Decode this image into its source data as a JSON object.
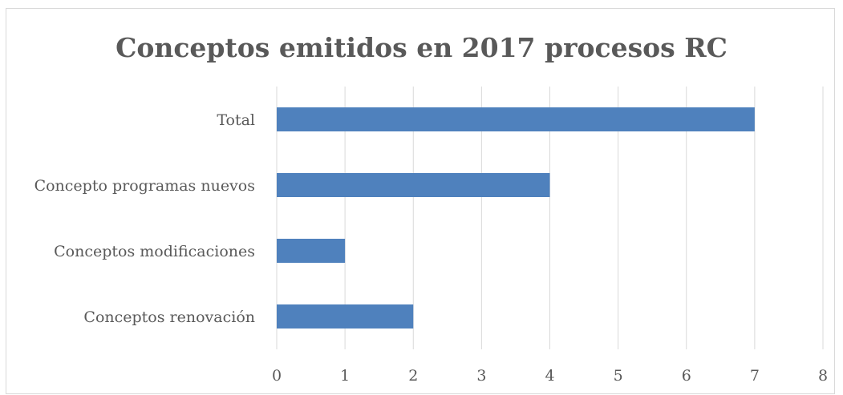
{
  "chart_data": {
    "type": "bar",
    "orientation": "horizontal",
    "title": "Conceptos emitidos en 2017 procesos RC",
    "xlabel": "",
    "ylabel": "",
    "categories": [
      "Total",
      "Concepto programas nuevos",
      "Conceptos modificaciones",
      "Conceptos renovación"
    ],
    "values": [
      7,
      4,
      1,
      2
    ],
    "xlim": [
      0,
      8
    ],
    "xticks": [
      "0",
      "1",
      "2",
      "3",
      "4",
      "5",
      "6",
      "7",
      "8"
    ],
    "grid": true,
    "bar_color": "#4f81bd",
    "grid_color": "#d9d9d9",
    "text_color": "#595959"
  }
}
